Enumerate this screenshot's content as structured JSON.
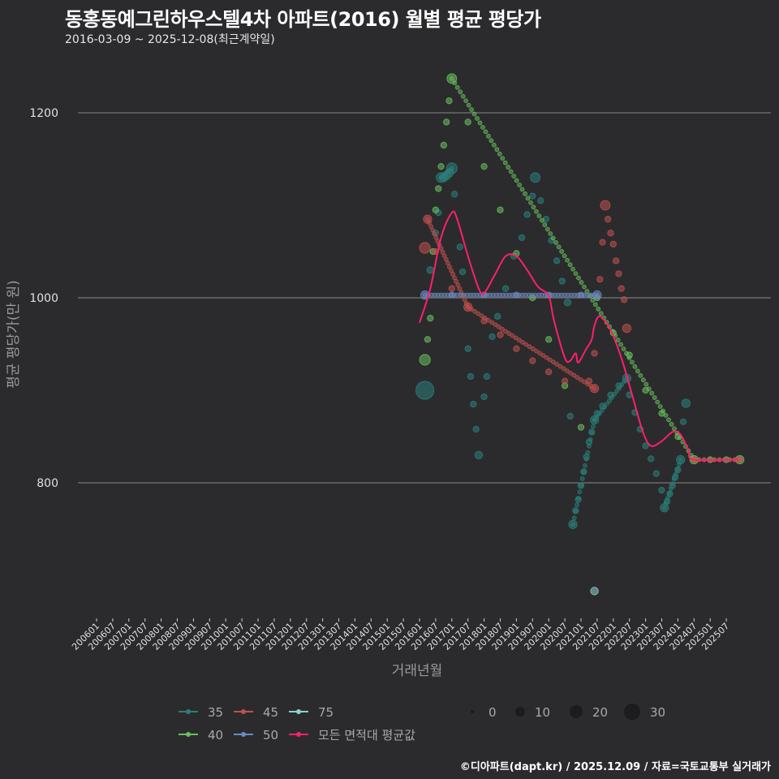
{
  "header": {
    "title": "동홍동예그린하우스텔4차 아파트(2016) 월별 평균 평당가",
    "subtitle": "2016-03-09 ~ 2025-12-08(최근계약일)"
  },
  "footer": {
    "credit": "©디아파트(dapt.kr) / 2025.12.09 / 자료=국토교통부 실거래가"
  },
  "colors": {
    "background": "#2b2b2d",
    "gridline": "#8a8a8a",
    "s35": "#2a7f7a",
    "s40": "#6abf5e",
    "s45": "#c0504d",
    "s50": "#6b88c0",
    "s75": "#8fd0cc",
    "avg": "#ff1f6b"
  },
  "chart_data": {
    "type": "scatter",
    "title": "동홍동예그린하우스텔4차 아파트(2016) 월별 평균 평당가",
    "subtitle": "2016-03-09 ~ 2025-12-08(최근계약일)",
    "xlabel": "거래년월",
    "ylabel": "평균 평당가(만 원)",
    "ylim": [
      660,
      1260
    ],
    "yticks": [
      800,
      1000,
      1200
    ],
    "grid": true,
    "xticks": [
      "200601",
      "200607",
      "200701",
      "200707",
      "200801",
      "200807",
      "200901",
      "200907",
      "201001",
      "201007",
      "201101",
      "201107",
      "201201",
      "201207",
      "201301",
      "201307",
      "201401",
      "201407",
      "201501",
      "201507",
      "201601",
      "201607",
      "201701",
      "201707",
      "201801",
      "201807",
      "201901",
      "201907",
      "202001",
      "202007",
      "202101",
      "202107",
      "202201",
      "202207",
      "202301",
      "202307",
      "202401",
      "202407",
      "202501",
      "202507"
    ],
    "legend": {
      "color_title": "",
      "color_entries": [
        "35",
        "40",
        "45",
        "50",
        "75",
        "모든 면적대 평균값"
      ],
      "size_entries": [
        0,
        10,
        20,
        30
      ],
      "position": "bottom"
    },
    "series": [
      {
        "name": "35",
        "color": "#2a7f7a",
        "points": [
          [
            "2016-03",
            900,
            28
          ],
          [
            "2016-05",
            1030,
            4
          ],
          [
            "2016-07",
            1070,
            3
          ],
          [
            "2016-08",
            1092,
            3
          ],
          [
            "2016-09",
            1130,
            8
          ],
          [
            "2016-10",
            1130,
            6
          ],
          [
            "2016-11",
            1132,
            6
          ],
          [
            "2016-12",
            1135,
            6
          ],
          [
            "2017-01",
            1140,
            10
          ],
          [
            "2017-02",
            1112,
            3
          ],
          [
            "2017-04",
            1055,
            3
          ],
          [
            "2017-05",
            1028,
            3
          ],
          [
            "2017-07",
            945,
            3
          ],
          [
            "2017-08",
            915,
            3
          ],
          [
            "2017-09",
            885,
            3
          ],
          [
            "2017-10",
            858,
            3
          ],
          [
            "2017-11",
            830,
            5
          ],
          [
            "2018-01",
            893,
            3
          ],
          [
            "2018-02",
            915,
            3
          ],
          [
            "2018-04",
            958,
            3
          ],
          [
            "2018-06",
            980,
            3
          ],
          [
            "2018-09",
            1010,
            3
          ],
          [
            "2018-12",
            1045,
            3
          ],
          [
            "2019-03",
            1065,
            3
          ],
          [
            "2019-05",
            1090,
            3
          ],
          [
            "2019-07",
            1110,
            3
          ],
          [
            "2019-08",
            1130,
            8
          ],
          [
            "2019-10",
            1105,
            3
          ],
          [
            "2019-12",
            1085,
            3
          ],
          [
            "2020-02",
            1062,
            3
          ],
          [
            "2020-04",
            1040,
            3
          ],
          [
            "2020-06",
            1018,
            3
          ],
          [
            "2020-08",
            995,
            4
          ],
          [
            "2020-09",
            872,
            3
          ],
          [
            "2020-10",
            755,
            6
          ],
          [
            "2020-11",
            770,
            3
          ],
          [
            "2020-12",
            782,
            3
          ],
          [
            "2021-01",
            797,
            3
          ],
          [
            "2021-02",
            812,
            3
          ],
          [
            "2021-03",
            828,
            3
          ],
          [
            "2021-04",
            844,
            3
          ],
          [
            "2021-05",
            855,
            3
          ],
          [
            "2021-06",
            868,
            6
          ],
          [
            "2021-07",
            875,
            3
          ],
          [
            "2021-09",
            883,
            3
          ],
          [
            "2021-12",
            895,
            3
          ],
          [
            "2022-03",
            905,
            3
          ],
          [
            "2022-06",
            913,
            6
          ],
          [
            "2022-07",
            895,
            3
          ],
          [
            "2022-09",
            876,
            3
          ],
          [
            "2022-11",
            858,
            3
          ],
          [
            "2023-01",
            840,
            3
          ],
          [
            "2023-03",
            826,
            3
          ],
          [
            "2023-05",
            810,
            3
          ],
          [
            "2023-07",
            792,
            3
          ],
          [
            "2023-08",
            773,
            6
          ],
          [
            "2023-09",
            780,
            3
          ],
          [
            "2023-10",
            788,
            3
          ],
          [
            "2023-11",
            797,
            3
          ],
          [
            "2023-12",
            806,
            3
          ],
          [
            "2024-01",
            814,
            3
          ],
          [
            "2024-02",
            825,
            6
          ],
          [
            "2024-03",
            866,
            3
          ],
          [
            "2024-04",
            886,
            6
          ]
        ]
      },
      {
        "name": "40",
        "color": "#6abf5e",
        "points": [
          [
            "2016-03",
            933,
            10
          ],
          [
            "2016-04",
            955,
            3
          ],
          [
            "2016-05",
            978,
            3
          ],
          [
            "2016-06",
            1050,
            3
          ],
          [
            "2016-07",
            1095,
            3
          ],
          [
            "2016-08",
            1118,
            3
          ],
          [
            "2016-09",
            1142,
            3
          ],
          [
            "2016-10",
            1165,
            3
          ],
          [
            "2016-11",
            1190,
            3
          ],
          [
            "2016-12",
            1213,
            3
          ],
          [
            "2017-01",
            1237,
            8
          ],
          [
            "2017-07",
            1190,
            3
          ],
          [
            "2018-01",
            1142,
            3
          ],
          [
            "2018-07",
            1095,
            3
          ],
          [
            "2019-01",
            1048,
            3
          ],
          [
            "2019-07",
            1000,
            3
          ],
          [
            "2020-01",
            955,
            3
          ],
          [
            "2020-07",
            905,
            3
          ],
          [
            "2021-01",
            860,
            3
          ],
          [
            "2021-07",
            1000,
            3
          ],
          [
            "2022-01",
            962,
            3
          ],
          [
            "2022-07",
            938,
            3
          ],
          [
            "2023-01",
            900,
            3
          ],
          [
            "2023-07",
            875,
            3
          ],
          [
            "2024-01",
            850,
            3
          ],
          [
            "2024-07",
            825,
            6
          ],
          [
            "2025-01",
            825,
            3
          ],
          [
            "2025-07",
            825,
            3
          ],
          [
            "2025-12",
            825,
            6
          ]
        ]
      },
      {
        "name": "45",
        "color": "#c0504d",
        "points": [
          [
            "2016-03",
            1054,
            10
          ],
          [
            "2016-04",
            1085,
            6
          ],
          [
            "2016-07",
            1050,
            3
          ],
          [
            "2017-01",
            1010,
            3
          ],
          [
            "2017-07",
            990,
            6
          ],
          [
            "2018-01",
            975,
            3
          ],
          [
            "2018-07",
            960,
            3
          ],
          [
            "2019-01",
            945,
            3
          ],
          [
            "2019-07",
            932,
            3
          ],
          [
            "2020-01",
            920,
            3
          ],
          [
            "2020-07",
            910,
            3
          ],
          [
            "2021-06",
            902,
            6
          ],
          [
            "2021-04",
            910,
            3
          ],
          [
            "2021-06",
            940,
            3
          ],
          [
            "2021-08",
            1020,
            3
          ],
          [
            "2021-09",
            1060,
            3
          ],
          [
            "2021-10",
            1100,
            8
          ],
          [
            "2021-11",
            1085,
            3
          ],
          [
            "2021-12",
            1070,
            3
          ],
          [
            "2022-01",
            1058,
            3
          ],
          [
            "2022-02",
            1040,
            3
          ],
          [
            "2022-03",
            1026,
            3
          ],
          [
            "2022-04",
            1010,
            3
          ],
          [
            "2022-05",
            998,
            3
          ],
          [
            "2022-06",
            967,
            6
          ],
          [
            "2024-07",
            825,
            3
          ],
          [
            "2025-12",
            825,
            3
          ]
        ]
      },
      {
        "name": "50",
        "color": "#6b88c0",
        "points": [
          [
            "2016-03",
            1003,
            6
          ],
          [
            "2017-01",
            1003,
            3
          ],
          [
            "2018-01",
            1003,
            3
          ],
          [
            "2019-01",
            1003,
            3
          ],
          [
            "2020-01",
            1003,
            3
          ],
          [
            "2021-01",
            1003,
            3
          ],
          [
            "2021-07",
            1003,
            6
          ]
        ]
      },
      {
        "name": "75",
        "color": "#8fd0cc",
        "points": [
          [
            "2021-06",
            683,
            5
          ]
        ]
      },
      {
        "name": "모든 면적대 평균값",
        "color": "#ff1f6b",
        "type": "line",
        "points": [
          [
            "2016-01",
            973
          ],
          [
            "2016-05",
            1010
          ],
          [
            "2016-09",
            1065
          ],
          [
            "2017-01",
            1092
          ],
          [
            "2017-03",
            1085
          ],
          [
            "2017-07",
            1045
          ],
          [
            "2017-11",
            1010
          ],
          [
            "2018-01",
            1005
          ],
          [
            "2018-05",
            1025
          ],
          [
            "2018-09",
            1045
          ],
          [
            "2019-01",
            1045
          ],
          [
            "2019-05",
            1030
          ],
          [
            "2019-09",
            1012
          ],
          [
            "2020-01",
            1002
          ],
          [
            "2020-03",
            975
          ],
          [
            "2020-07",
            935
          ],
          [
            "2020-09",
            932
          ],
          [
            "2020-11",
            940
          ],
          [
            "2020-12",
            930
          ],
          [
            "2021-03",
            945
          ],
          [
            "2021-05",
            955
          ],
          [
            "2021-06",
            970
          ],
          [
            "2021-08",
            980
          ],
          [
            "2021-12",
            965
          ],
          [
            "2022-04",
            935
          ],
          [
            "2022-08",
            895
          ],
          [
            "2022-12",
            855
          ],
          [
            "2023-03",
            840
          ],
          [
            "2023-07",
            845
          ],
          [
            "2023-11",
            855
          ],
          [
            "2024-02",
            852
          ],
          [
            "2024-05",
            835
          ],
          [
            "2024-07",
            825
          ],
          [
            "2025-12",
            825
          ]
        ]
      }
    ]
  },
  "legend": {
    "items": [
      {
        "label": "35",
        "color": "#2a7f7a"
      },
      {
        "label": "45",
        "color": "#c0504d"
      },
      {
        "label": "75",
        "color": "#8fd0cc"
      },
      {
        "label": "40",
        "color": "#6abf5e"
      },
      {
        "label": "50",
        "color": "#6b88c0"
      },
      {
        "label": "모든 면적대 평균값",
        "color": "#ff1f6b"
      }
    ],
    "sizes": [
      {
        "label": "0",
        "r": 2
      },
      {
        "label": "10",
        "r": 6
      },
      {
        "label": "20",
        "r": 8
      },
      {
        "label": "30",
        "r": 10
      }
    ]
  },
  "axes": {
    "x_title": "거래년월",
    "y_title": "평균 평당가(만 원)",
    "y_ticks": [
      "800",
      "1000",
      "1200"
    ]
  }
}
